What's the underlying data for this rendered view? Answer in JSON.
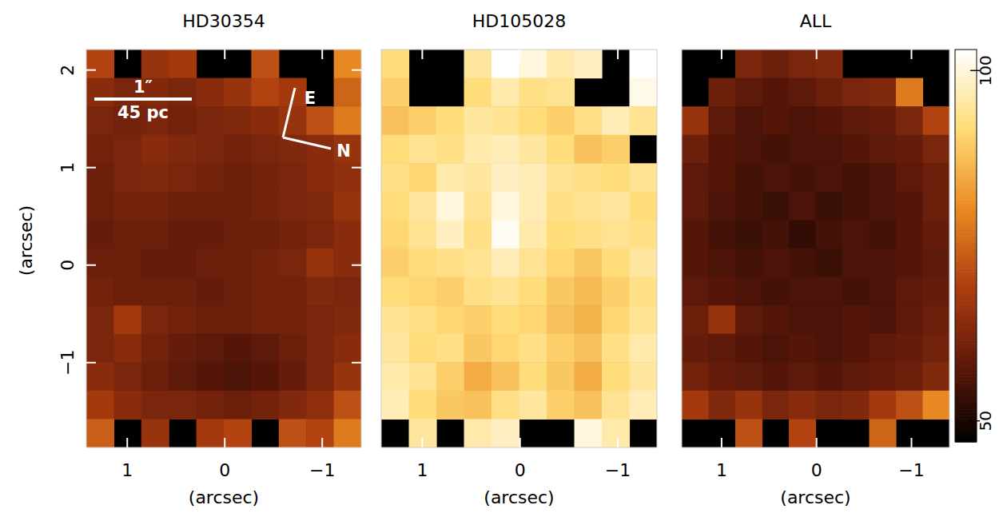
{
  "chart_data": [
    {
      "type": "heatmap",
      "title": "HD30354",
      "x_label": "(arcsec)",
      "y_label": "(arcsec)",
      "xlim": [
        1.42,
        -1.4
      ],
      "ylim": [
        -1.87,
        2.21
      ],
      "xticks": [
        1,
        0,
        {
          "value": -1,
          "label": "−1"
        }
      ],
      "yticks": [
        {
          "value": -1,
          "label": "−1"
        },
        0,
        1,
        2
      ],
      "tick_labels": true,
      "annotations": {
        "scale_bar": {
          "length": 1,
          "label": "1″",
          "sublabel": "45 pc"
        },
        "compass": [
          "E",
          "N"
        ]
      },
      "values": [
        [
          70,
          null,
          66,
          68,
          null,
          null,
          72,
          null,
          null,
          80
        ],
        [
          64,
          62,
          63,
          62,
          64,
          66,
          70,
          68,
          null,
          75
        ],
        [
          62,
          61,
          62,
          61,
          62,
          63,
          64,
          66,
          72,
          78
        ],
        [
          61,
          62,
          64,
          63,
          62,
          61,
          62,
          63,
          64,
          66
        ],
        [
          60,
          62,
          63,
          62,
          61,
          60,
          61,
          62,
          64,
          65
        ],
        [
          60,
          61,
          61,
          60,
          60,
          60,
          61,
          62,
          63,
          66
        ],
        [
          59,
          60,
          60,
          59,
          59,
          60,
          60,
          61,
          62,
          64
        ],
        [
          60,
          60,
          59,
          59,
          60,
          60,
          61,
          62,
          66,
          64
        ],
        [
          61,
          60,
          60,
          60,
          59,
          60,
          61,
          61,
          63,
          62
        ],
        [
          62,
          68,
          62,
          61,
          60,
          60,
          61,
          61,
          62,
          63
        ],
        [
          62,
          64,
          61,
          59,
          58,
          57,
          58,
          60,
          62,
          64
        ],
        [
          64,
          62,
          60,
          58,
          57,
          56,
          57,
          59,
          62,
          66
        ],
        [
          68,
          64,
          62,
          62,
          61,
          60,
          61,
          63,
          65,
          72
        ],
        [
          74,
          null,
          66,
          null,
          68,
          70,
          null,
          72,
          70,
          78
        ]
      ]
    },
    {
      "type": "heatmap",
      "title": "HD105028",
      "x_label": "(arcsec)",
      "xlim": [
        1.42,
        -1.4
      ],
      "ylim": [
        -1.87,
        2.21
      ],
      "xticks": [
        1,
        0,
        {
          "value": -1,
          "label": "−1"
        }
      ],
      "tick_labels": "x",
      "values": [
        [
          92,
          null,
          null,
          95,
          103,
          100,
          96,
          98,
          null,
          103
        ],
        [
          90,
          null,
          null,
          92,
          96,
          93,
          94,
          null,
          null,
          101
        ],
        [
          88,
          90,
          92,
          95,
          94,
          92,
          90,
          93,
          97,
          94
        ],
        [
          92,
          94,
          93,
          96,
          97,
          95,
          92,
          88,
          90,
          null
        ],
        [
          93,
          91,
          96,
          95,
          98,
          97,
          94,
          93,
          92,
          94
        ],
        [
          92,
          95,
          100,
          94,
          100,
          97,
          93,
          94,
          95,
          92
        ],
        [
          91,
          94,
          98,
          93,
          102,
          96,
          92,
          93,
          94,
          93
        ],
        [
          90,
          92,
          93,
          94,
          97,
          94,
          91,
          89,
          92,
          95
        ],
        [
          92,
          91,
          90,
          93,
          94,
          92,
          89,
          87,
          90,
          93
        ],
        [
          94,
          93,
          91,
          90,
          92,
          91,
          88,
          86,
          91,
          94
        ],
        [
          95,
          92,
          93,
          89,
          91,
          93,
          90,
          88,
          93,
          96
        ],
        [
          96,
          94,
          90,
          85,
          88,
          92,
          89,
          85,
          92,
          95
        ],
        [
          97,
          92,
          89,
          88,
          93,
          95,
          90,
          88,
          94,
          97
        ],
        [
          null,
          95,
          null,
          96,
          98,
          null,
          null,
          100,
          96,
          null
        ]
      ]
    },
    {
      "type": "heatmap",
      "title": "ALL",
      "x_label": "(arcsec)",
      "xlim": [
        1.42,
        -1.4
      ],
      "ylim": [
        -1.87,
        2.21
      ],
      "xticks": [
        1,
        0,
        {
          "value": -1,
          "label": "−1"
        }
      ],
      "tick_labels": "x",
      "color_range": [
        47,
        103
      ],
      "color_ticks": [
        50,
        100
      ],
      "values": [
        [
          null,
          null,
          62,
          60,
          62,
          63,
          null,
          null,
          null,
          null
        ],
        [
          null,
          60,
          58,
          57,
          58,
          60,
          62,
          63,
          78,
          null
        ],
        [
          66,
          58,
          56,
          57,
          56,
          57,
          58,
          59,
          62,
          70
        ],
        [
          60,
          57,
          56,
          55,
          56,
          56,
          57,
          58,
          59,
          62
        ],
        [
          58,
          57,
          55,
          56,
          55,
          56,
          55,
          56,
          58,
          60
        ],
        [
          58,
          56,
          55,
          54,
          56,
          54,
          55,
          56,
          57,
          60
        ],
        [
          57,
          55,
          54,
          55,
          53,
          55,
          56,
          55,
          57,
          59
        ],
        [
          57,
          56,
          55,
          56,
          55,
          54,
          56,
          56,
          57,
          58
        ],
        [
          58,
          57,
          56,
          55,
          56,
          56,
          55,
          56,
          58,
          59
        ],
        [
          60,
          66,
          58,
          57,
          56,
          56,
          57,
          56,
          58,
          60
        ],
        [
          59,
          58,
          57,
          56,
          57,
          56,
          57,
          58,
          59,
          61
        ],
        [
          61,
          59,
          58,
          57,
          58,
          57,
          58,
          59,
          60,
          63
        ],
        [
          68,
          63,
          66,
          62,
          64,
          62,
          63,
          68,
          72,
          80
        ],
        [
          null,
          null,
          72,
          null,
          70,
          null,
          null,
          75,
          null,
          null
        ]
      ]
    }
  ]
}
